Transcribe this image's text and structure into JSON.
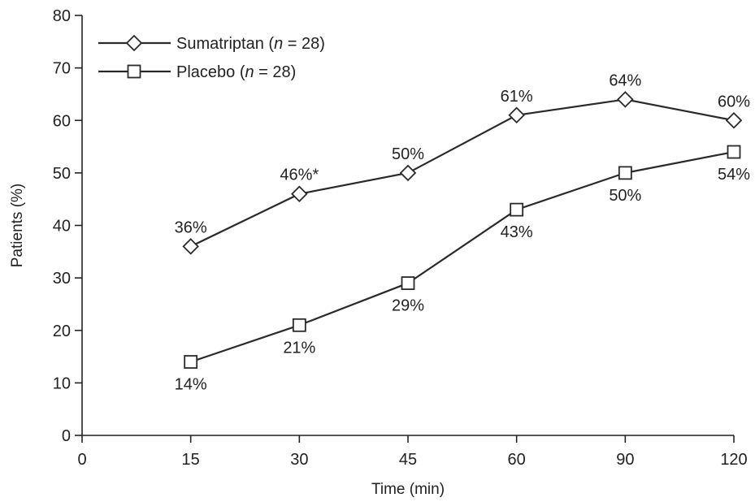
{
  "chart_data": {
    "type": "line",
    "title": "",
    "xlabel": "Time (min)",
    "ylabel": "Patients (%)",
    "categories": [
      "0",
      "15",
      "30",
      "45",
      "60",
      "90",
      "120"
    ],
    "ylim": [
      0,
      80
    ],
    "yticks": [
      0,
      10,
      20,
      30,
      40,
      50,
      60,
      70,
      80
    ],
    "grid": false,
    "legend_position": "top-left",
    "series": [
      {
        "name": "Sumatriptan",
        "n_label": "n",
        "n_value": "= 28",
        "marker": "diamond",
        "x": [
          "15",
          "30",
          "45",
          "60",
          "90",
          "120"
        ],
        "values": [
          36,
          46,
          50,
          61,
          64,
          60
        ],
        "labels": [
          "36%",
          "46%*",
          "50%",
          "61%",
          "64%",
          "60%"
        ],
        "label_side": [
          "above",
          "above",
          "above",
          "above",
          "above",
          "above"
        ]
      },
      {
        "name": "Placebo",
        "n_label": "n",
        "n_value": "= 28",
        "marker": "square",
        "x": [
          "15",
          "30",
          "45",
          "60",
          "90",
          "120"
        ],
        "values": [
          14,
          21,
          29,
          43,
          50,
          54
        ],
        "labels": [
          "14%",
          "21%",
          "29%",
          "43%",
          "50%",
          "54%"
        ],
        "label_side": [
          "below",
          "below",
          "below",
          "below",
          "below",
          "below"
        ]
      }
    ]
  }
}
